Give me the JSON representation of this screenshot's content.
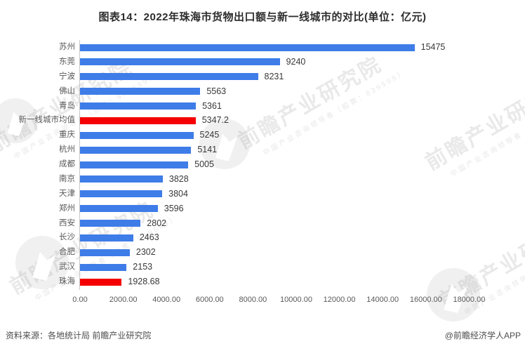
{
  "title": "图表14：2022年珠海市货物出口额与新一线城市的对比(单位：亿元)",
  "chart_data": {
    "type": "bar",
    "orientation": "horizontal",
    "title": "图表14：2022年珠海市货物出口额与新一线城市的对比(单位：亿元)",
    "unit": "亿元",
    "categories": [
      "苏州",
      "东莞",
      "宁波",
      "佛山",
      "青岛",
      "新一线城市均值",
      "重庆",
      "杭州",
      "成都",
      "南京",
      "天津",
      "郑州",
      "西安",
      "长沙",
      "合肥",
      "武汉",
      "珠海"
    ],
    "values": [
      15475,
      9240,
      8231,
      5563,
      5361,
      5347.2,
      5245,
      5141,
      5005,
      3828,
      3804,
      3596,
      2802,
      2463,
      2302,
      2153,
      1928.68
    ],
    "value_labels": [
      "15475",
      "9240",
      "8231",
      "5563",
      "5361",
      "5347.2",
      "5245",
      "5141",
      "5005",
      "3828",
      "3804",
      "3596",
      "2802",
      "2463",
      "2302",
      "2153",
      "1928.68"
    ],
    "highlight_indices": [
      5,
      16
    ],
    "bar_color": "#3e7ce8",
    "highlight_color": "#f40000",
    "xlim": [
      0,
      18000
    ],
    "x_ticks": [
      "0.00",
      "2000.00",
      "4000.00",
      "6000.00",
      "8000.00",
      "10000.00",
      "12000.00",
      "14000.00",
      "16000.00",
      "18000.00"
    ],
    "grid": false,
    "legend": false
  },
  "footer": {
    "source": "资料来源：各地统计局 前瞻产业研究院",
    "credit": "@前瞻经济学人APP"
  },
  "watermark": {
    "main": "前瞻产业研究院",
    "sub": "中国产业咨询领导者（股票：839599）"
  }
}
